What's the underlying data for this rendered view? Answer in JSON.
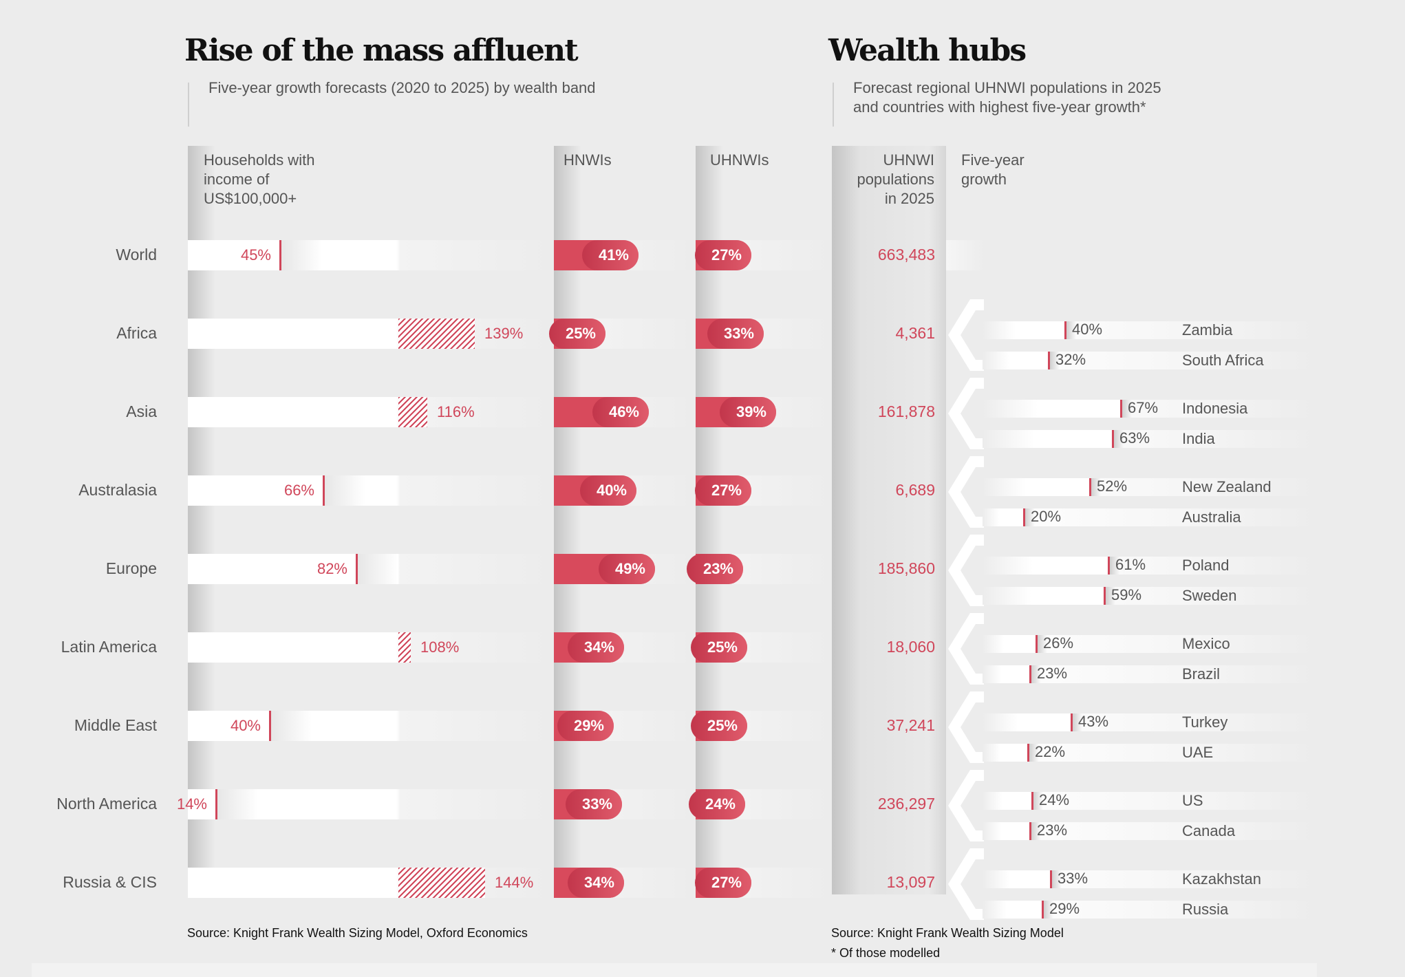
{
  "left": {
    "title": "Rise of the mass affluent",
    "subtitle": "Five-year growth forecasts (2020 to 2025) by wealth band",
    "col_households": [
      "Households with",
      "income of",
      "US$100,000+"
    ],
    "col_hnwi": "HNWIs",
    "col_uhnwi": "UHNWIs",
    "source": "Source: Knight Frank Wealth Sizing Model, Oxford Economics"
  },
  "right": {
    "title": "Wealth hubs",
    "subtitle_lines": [
      "Forecast regional UHNWI populations in 2025",
      "and countries with highest five-year growth*"
    ],
    "col_population": [
      "UHNWI",
      "populations",
      "in 2025"
    ],
    "col_growth": [
      "Five-year",
      "growth"
    ],
    "source": "Source: Knight Frank Wealth Sizing Model",
    "footnote": "* Of those modelled"
  },
  "colors": {
    "accent": "#d84a5c",
    "background": "#ececec",
    "text": "#555555",
    "title": "#111111"
  },
  "chart_data": [
    {
      "type": "bar",
      "title": "Rise of the mass affluent",
      "categories": [
        "World",
        "Africa",
        "Asia",
        "Australasia",
        "Europe",
        "Latin America",
        "Middle East",
        "North America",
        "Russia & CIS"
      ],
      "series": [
        {
          "name": "Households with income of US$100,000+",
          "values": [
            45,
            139,
            116,
            66,
            82,
            108,
            40,
            14,
            144
          ],
          "labels": [
            "45%",
            "139%",
            "116%",
            "66%",
            "82%",
            "108%",
            "40%",
            "14%",
            "144%"
          ]
        },
        {
          "name": "HNWIs",
          "values": [
            41,
            25,
            46,
            40,
            49,
            34,
            29,
            33,
            34
          ],
          "labels": [
            "41%",
            "25%",
            "46%",
            "40%",
            "49%",
            "34%",
            "29%",
            "33%",
            "34%"
          ]
        },
        {
          "name": "UHNWIs",
          "values": [
            27,
            33,
            39,
            27,
            23,
            25,
            25,
            24,
            27
          ],
          "labels": [
            "27%",
            "33%",
            "39%",
            "27%",
            "23%",
            "25%",
            "25%",
            "24%",
            "27%"
          ]
        }
      ]
    },
    {
      "type": "table",
      "title": "Wealth hubs",
      "columns": [
        "UHNWI populations in 2025",
        "Five-year growth"
      ],
      "rows": [
        {
          "region": "World",
          "population": "663,483",
          "countries": []
        },
        {
          "region": "Africa",
          "population": "4,361",
          "countries": [
            {
              "name": "Zambia",
              "growth": 40,
              "label": "40%"
            },
            {
              "name": "South Africa",
              "growth": 32,
              "label": "32%"
            }
          ]
        },
        {
          "region": "Asia",
          "population": "161,878",
          "countries": [
            {
              "name": "Indonesia",
              "growth": 67,
              "label": "67%"
            },
            {
              "name": "India",
              "growth": 63,
              "label": "63%"
            }
          ]
        },
        {
          "region": "Australasia",
          "population": "6,689",
          "countries": [
            {
              "name": "New Zealand",
              "growth": 52,
              "label": "52%"
            },
            {
              "name": "Australia",
              "growth": 20,
              "label": "20%"
            }
          ]
        },
        {
          "region": "Europe",
          "population": "185,860",
          "countries": [
            {
              "name": "Poland",
              "growth": 61,
              "label": "61%"
            },
            {
              "name": "Sweden",
              "growth": 59,
              "label": "59%"
            }
          ]
        },
        {
          "region": "Latin America",
          "population": "18,060",
          "countries": [
            {
              "name": "Mexico",
              "growth": 26,
              "label": "26%"
            },
            {
              "name": "Brazil",
              "growth": 23,
              "label": "23%"
            }
          ]
        },
        {
          "region": "Middle East",
          "population": "37,241",
          "countries": [
            {
              "name": "Turkey",
              "growth": 43,
              "label": "43%"
            },
            {
              "name": "UAE",
              "growth": 22,
              "label": "22%"
            }
          ]
        },
        {
          "region": "North America",
          "population": "236,297",
          "countries": [
            {
              "name": "US",
              "growth": 24,
              "label": "24%"
            },
            {
              "name": "Canada",
              "growth": 23,
              "label": "23%"
            }
          ]
        },
        {
          "region": "Russia & CIS",
          "population": "13,097",
          "countries": [
            {
              "name": "Kazakhstan",
              "growth": 33,
              "label": "33%"
            },
            {
              "name": "Russia",
              "growth": 29,
              "label": "29%"
            }
          ]
        }
      ]
    }
  ]
}
